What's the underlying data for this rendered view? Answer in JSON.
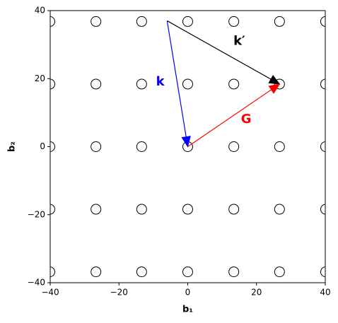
{
  "chart_data": {
    "type": "scatter",
    "xlabel": "b₁",
    "ylabel": "b₂",
    "xlim": [
      -40,
      40
    ],
    "ylim": [
      -40,
      40
    ],
    "xticks": [
      {
        "value": -40,
        "label": "−40"
      },
      {
        "value": -20,
        "label": "−20"
      },
      0,
      20,
      40
    ],
    "yticks": [
      {
        "value": -40,
        "label": "−40"
      },
      {
        "value": -20,
        "label": "−20"
      },
      0,
      20,
      40
    ],
    "series": [
      {
        "color": "#000000",
        "x": [
          -40.1,
          -26.7,
          -13.4,
          0,
          13.4,
          26.7,
          40.1,
          -40.1,
          -26.7,
          -13.4,
          0,
          13.4,
          26.7,
          40.1,
          -40.1,
          -26.7,
          -13.4,
          0,
          13.4,
          26.7,
          40.1,
          -40.1,
          -26.7,
          -13.4,
          0,
          13.4,
          26.7,
          40.1,
          -40.1,
          -26.7,
          -13.4,
          0,
          13.4,
          26.7,
          40.1
        ],
        "values": [
          36.8,
          36.8,
          36.8,
          36.8,
          36.8,
          36.8,
          36.8,
          18.4,
          18.4,
          18.4,
          18.4,
          18.4,
          18.4,
          18.4,
          0,
          0,
          0,
          0,
          0,
          0,
          0,
          -18.4,
          -18.4,
          -18.4,
          -18.4,
          -18.4,
          -18.4,
          -18.4,
          -36.8,
          -36.8,
          -36.8,
          -36.8,
          -36.8,
          -36.8,
          -36.8
        ]
      }
    ],
    "arrows": [
      {
        "name": "k",
        "color": "#0000ff",
        "x": [
          -6,
          0
        ],
        "y": [
          37,
          0
        ]
      },
      {
        "name": "k′",
        "color": "#000000",
        "x": [
          -6,
          26.7
        ],
        "y": [
          37,
          18.4
        ]
      },
      {
        "name": "G",
        "color": "#ff0000",
        "x": [
          0,
          26.7
        ],
        "y": [
          0,
          18.4
        ]
      }
    ]
  }
}
